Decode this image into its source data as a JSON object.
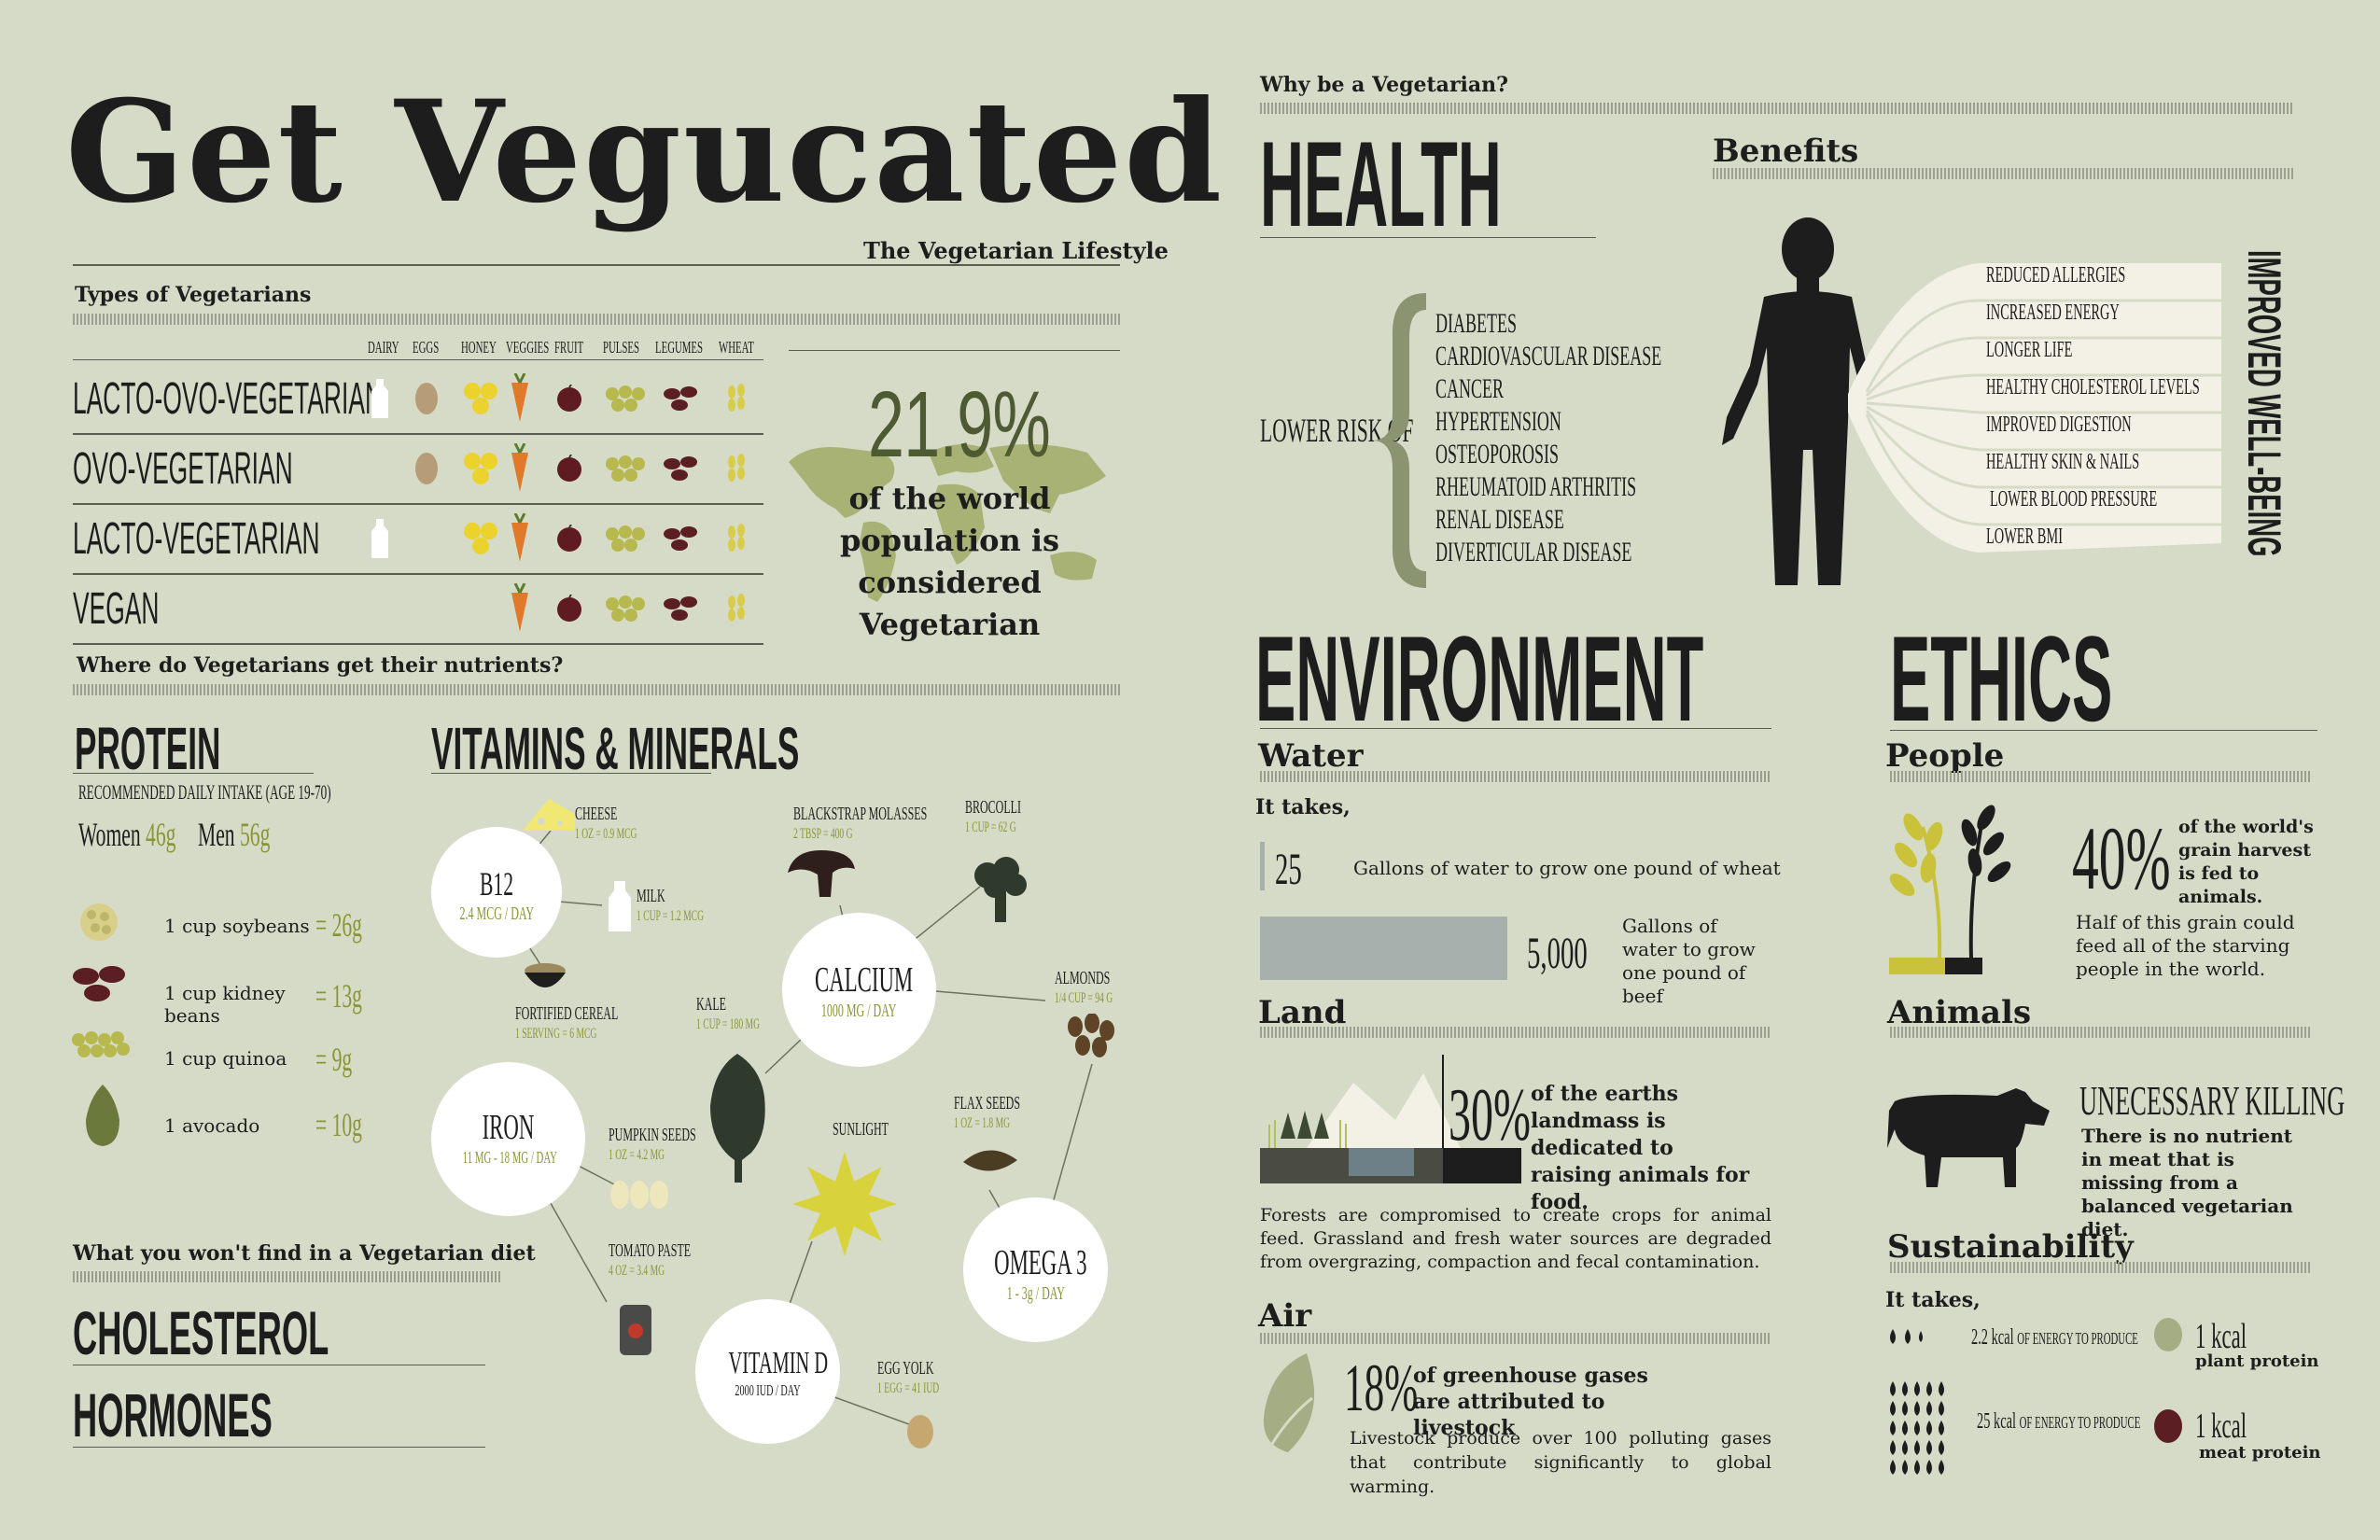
{
  "title": "Get Vegucated",
  "subtitle": "The Vegetarian Lifestyle",
  "types": {
    "heading": "Types of Vegetarians",
    "columns": [
      "DAIRY",
      "EGGS",
      "HONEY",
      "VEGGIES",
      "FRUIT",
      "PULSES",
      "LEGUMES",
      "WHEAT"
    ],
    "rows": [
      {
        "name": "LACTO-OVO-VEGETARIAN",
        "has": [
          1,
          1,
          1,
          1,
          1,
          1,
          1,
          1
        ]
      },
      {
        "name": "OVO-VEGETARIAN",
        "has": [
          0,
          1,
          1,
          1,
          1,
          1,
          1,
          1
        ]
      },
      {
        "name": "LACTO-VEGETARIAN",
        "has": [
          1,
          0,
          1,
          1,
          1,
          1,
          1,
          1
        ]
      },
      {
        "name": "VEGAN",
        "has": [
          0,
          0,
          0,
          1,
          1,
          1,
          1,
          1
        ]
      }
    ]
  },
  "world": {
    "stat": "21.9%",
    "text": "of the world population is considered Vegetarian"
  },
  "nutrients": {
    "heading": "Where do Vegetarians get their nutrients?",
    "protein": {
      "title": "PROTEIN",
      "rdi": "RECOMMENDED DAILY INTAKE (AGE 19-70)",
      "women_label": "Women",
      "women_val": "46g",
      "men_label": "Men",
      "men_val": "56g",
      "items": [
        {
          "food": "1 cup soybeans",
          "val": "= 26g"
        },
        {
          "food": "1 cup kidney beans",
          "val": "= 13g"
        },
        {
          "food": "1 cup quinoa",
          "val": "= 9g"
        },
        {
          "food": "1 avocado",
          "val": "= 10g"
        }
      ]
    },
    "vitamins": {
      "title": "VITAMINS & MINERALS",
      "circles": [
        {
          "name": "B12",
          "amount": "2.4 MCG / DAY"
        },
        {
          "name": "CALCIUM",
          "amount": "1000 MG / DAY"
        },
        {
          "name": "IRON",
          "amount": "11 MG - 18 MG / DAY"
        },
        {
          "name": "OMEGA 3",
          "amount": "1 - 3g / DAY"
        },
        {
          "name": "VITAMIN D",
          "amount": "2000 IUD / DAY"
        }
      ],
      "sources": {
        "cheese": {
          "name": "CHEESE",
          "amt": "1 OZ = 0.9 MCG"
        },
        "milk": {
          "name": "MILK",
          "amt": "1 CUP = 1.2 MCG"
        },
        "cereal": {
          "name": "FORTIFIED CEREAL",
          "amt": "1 SERVING = 6 MCG"
        },
        "molasses": {
          "name": "BLACKSTRAP MOLASSES",
          "amt": "2 TBSP = 400 G"
        },
        "brocolli": {
          "name": "BROCOLLI",
          "amt": "1 CUP = 62 G"
        },
        "almonds": {
          "name": "ALMONDS",
          "amt": "1/4 CUP = 94 G"
        },
        "kale": {
          "name": "KALE",
          "amt": "1 CUP = 180 MG"
        },
        "pumpkin": {
          "name": "PUMPKIN SEEDS",
          "amt": "1 OZ = 4.2 MG"
        },
        "flax": {
          "name": "FLAX SEEDS",
          "amt": "1 OZ = 1.8 MG"
        },
        "sunlight": {
          "name": "SUNLIGHT"
        },
        "tomato": {
          "name": "TOMATO PASTE",
          "amt": "4 OZ = 3.4 MG"
        },
        "egg": {
          "name": "EGG YOLK",
          "amt": "1 EGG = 41 IUD"
        }
      }
    }
  },
  "wont_find": {
    "heading": "What you won't find in a Vegetarian diet",
    "items": [
      "CHOLESTEROL",
      "HORMONES"
    ]
  },
  "why": {
    "heading": "Why be a Vegetarian?",
    "health": {
      "title": "HEALTH",
      "lower_risk": "LOWER RISK OF",
      "diseases": [
        "DIABETES",
        "CARDIOVASCULAR DISEASE",
        "CANCER",
        "HYPERTENSION",
        "OSTEOPOROSIS",
        "RHEUMATOID ARTHRITIS",
        "RENAL DISEASE",
        "DIVERTICULAR DISEASE"
      ],
      "benefits_heading": "Benefits",
      "benefits": [
        "REDUCED ALLERGIES",
        "INCREASED ENERGY",
        "LONGER LIFE",
        "HEALTHY CHOLESTEROL LEVELS",
        "IMPROVED DIGESTION",
        "HEALTHY SKIN & NAILS",
        "LOWER BLOOD PRESSURE",
        "LOWER BMI"
      ],
      "wellbeing": "IMPROVED WELL-BEING"
    },
    "environment": {
      "title": "ENVIRONMENT",
      "water_heading": "Water",
      "it_takes": "It takes,",
      "wheat": {
        "value": "25",
        "text": "Gallons of water to grow one pound of wheat"
      },
      "beef": {
        "value": "5,000",
        "text": "Gallons of water to grow one pound of beef"
      },
      "land_heading": "Land",
      "land_stat": "30%",
      "land_text": "of the earths landmass is dedicated to raising animals for food.",
      "land_para": "Forests are compromised to create crops for animal feed. Grassland and fresh water sources are degraded from overgrazing, compaction and fecal contamination.",
      "air_heading": "Air",
      "air_stat": "18%",
      "air_text": "of greenhouse gases are attributed to livestock",
      "air_para": "Livestock produce over 100 polluting gases that contribute significantly to global warming."
    },
    "ethics": {
      "title": "ETHICS",
      "people_heading": "People",
      "grain_stat": "40%",
      "grain_text": "of the world's grain harvest is fed to animals.",
      "grain_para": "Half of this grain could feed all of the starving people in the world.",
      "animals_heading": "Animals",
      "killing_title": "UNECESSARY KILLING",
      "killing_text": "There is no nutrient in meat that is missing from a balanced vegetarian diet.",
      "sustain_heading": "Sustainability",
      "it_takes": "It takes,",
      "plant": {
        "kcal": "2.2 kcal",
        "of": "OF ENERGY TO PRODUCE",
        "one": "1 kcal",
        "type": "plant protein"
      },
      "meat": {
        "kcal": "25 kcal",
        "of": "OF ENERGY TO PRODUCE",
        "one": "1 kcal",
        "type": "meat protein"
      }
    }
  },
  "colors": {
    "bg": "#d6dbc8",
    "olive": "#8a9636",
    "dark": "#1d1d1d",
    "sage": "#8a9470",
    "grain": "#c9c23a"
  }
}
